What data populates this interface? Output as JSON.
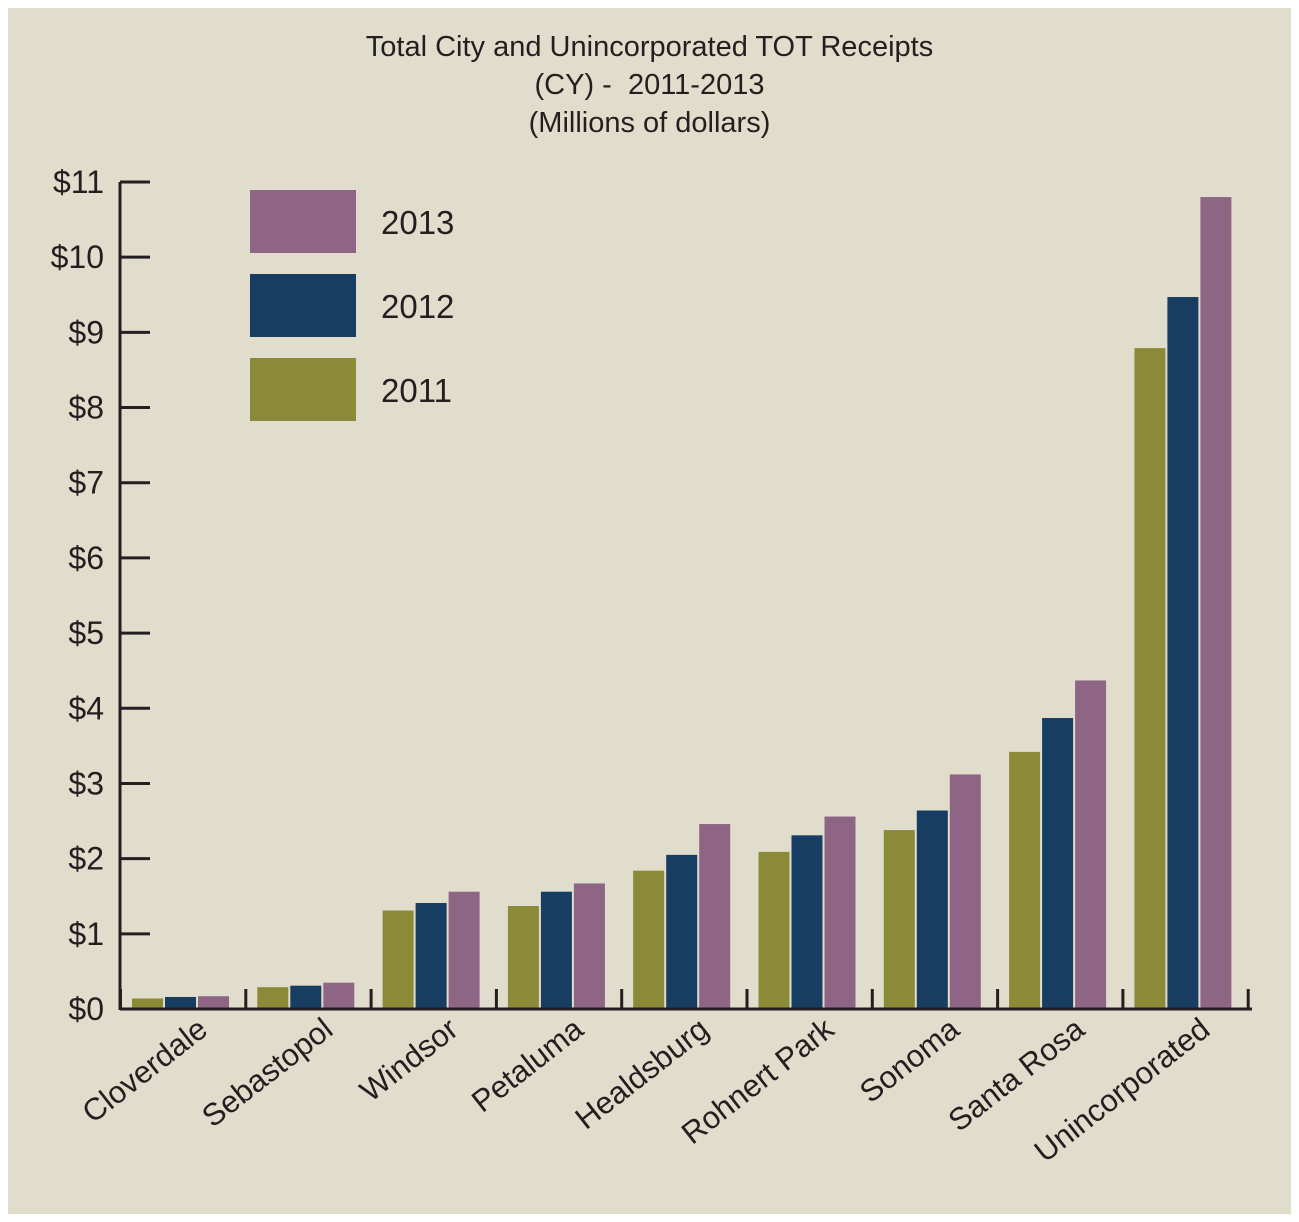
{
  "chart_data": {
    "type": "bar",
    "title": "Total City and Unincorporated TOT Receipts",
    "subtitle": "(CY) -  2011-2013",
    "units_note": "(Millions of dollars)",
    "categories": [
      "Cloverdale",
      "Sebastopol",
      "Windsor",
      "Petaluma",
      "Healdsburg",
      "Rohnert Park",
      "Sonoma",
      "Santa Rosa",
      "Unincorporated"
    ],
    "series": [
      {
        "name": "2011",
        "color": "#8b8a38",
        "values": [
          0.14,
          0.29,
          1.31,
          1.37,
          1.84,
          2.09,
          2.38,
          3.42,
          8.79
        ]
      },
      {
        "name": "2012",
        "color": "#173e62",
        "values": [
          0.16,
          0.31,
          1.41,
          1.56,
          2.05,
          2.31,
          2.64,
          3.87,
          9.47
        ]
      },
      {
        "name": "2013",
        "color": "#8f6586",
        "values": [
          0.17,
          0.35,
          1.56,
          1.67,
          2.46,
          2.56,
          3.12,
          4.37,
          10.8
        ]
      }
    ],
    "legend_order": [
      "2013",
      "2012",
      "2011"
    ],
    "legend_position": "top-left",
    "ylim": [
      0,
      11
    ],
    "yticks": [
      "$0",
      "$1",
      "$2",
      "$3",
      "$4",
      "$5",
      "$6",
      "$7",
      "$8",
      "$9",
      "$10",
      "$11"
    ],
    "grid": false,
    "background": "#e1ddcc"
  }
}
